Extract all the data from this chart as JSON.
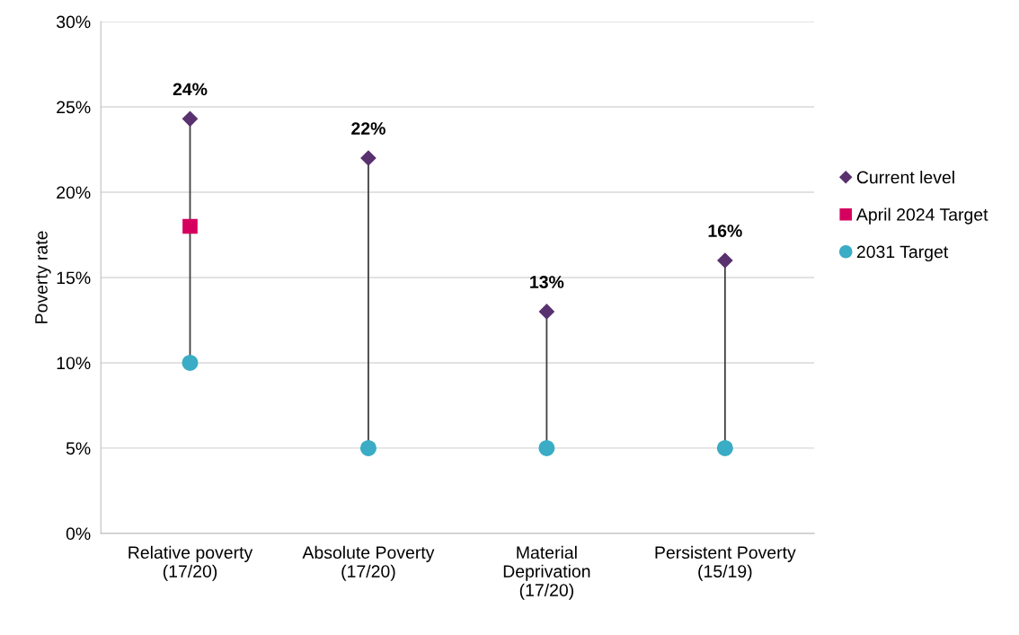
{
  "chart_data": {
    "type": "scatter",
    "ylabel": "Poverty rate",
    "categories": [
      "Relative poverty\n(17/20)",
      "Absolute Poverty\n(17/20)",
      "Material\nDeprivation\n(17/20)",
      "Persistent Poverty\n(15/19)"
    ],
    "series": [
      {
        "name": "Current level",
        "color": "#59316f",
        "marker": "diamond",
        "values": [
          24.3,
          22,
          13,
          16
        ],
        "value_labels": [
          "24%",
          "22%",
          "13%",
          "16%"
        ]
      },
      {
        "name": "April 2024 Target",
        "color": "#d6005f",
        "marker": "square",
        "values": [
          18,
          null,
          null,
          null
        ]
      },
      {
        "name": "2031 Target",
        "color": "#3aacc5",
        "marker": "circle",
        "values": [
          10,
          5,
          5,
          5
        ]
      }
    ],
    "ylim": [
      0,
      30
    ],
    "yticks": [
      {
        "value": 0,
        "label": "0%"
      },
      {
        "value": 5,
        "label": "5%"
      },
      {
        "value": 10,
        "label": "10%"
      },
      {
        "value": 15,
        "label": "15%"
      },
      {
        "value": 20,
        "label": "20%"
      },
      {
        "value": 25,
        "label": "25%"
      },
      {
        "value": 30,
        "label": "30%"
      }
    ],
    "grid": "y",
    "legend": "right"
  }
}
